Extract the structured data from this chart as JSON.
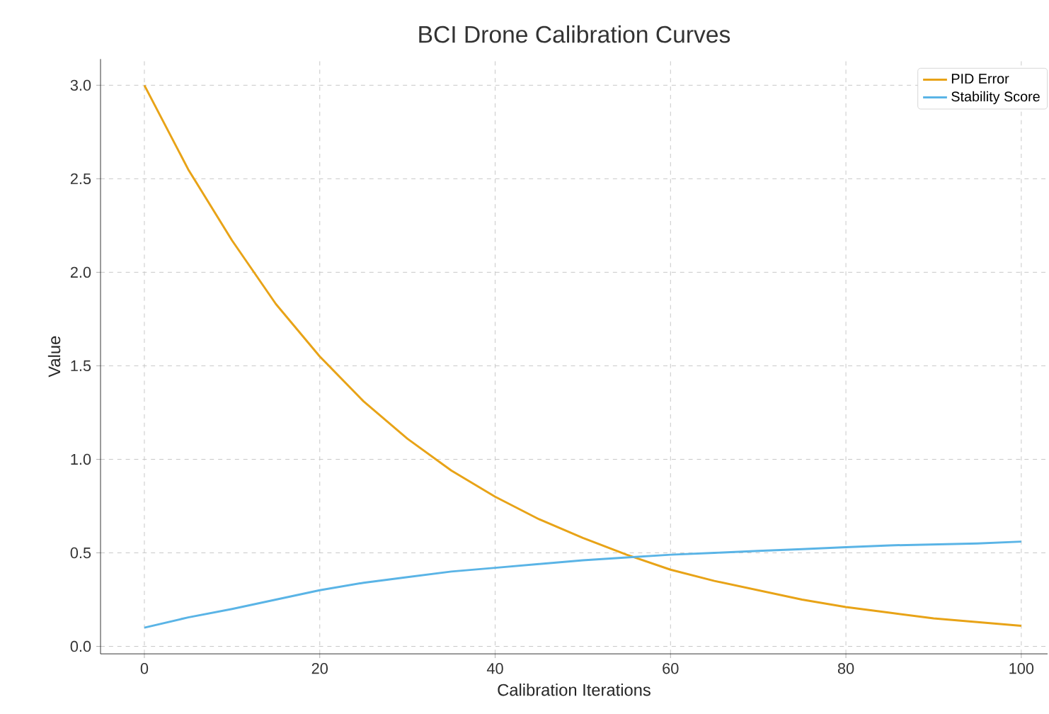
{
  "chart_data": {
    "type": "line",
    "title": "BCI Drone Calibration Curves",
    "xlabel": "Calibration Iterations",
    "ylabel": "Value",
    "x": [
      0,
      5,
      10,
      15,
      20,
      25,
      30,
      35,
      40,
      45,
      50,
      55,
      60,
      65,
      70,
      75,
      80,
      85,
      90,
      95,
      100
    ],
    "series": [
      {
        "name": "PID Error",
        "color": "#e8a317",
        "values": [
          3.0,
          2.55,
          2.17,
          1.83,
          1.55,
          1.31,
          1.11,
          0.94,
          0.8,
          0.68,
          0.58,
          0.49,
          0.41,
          0.35,
          0.3,
          0.25,
          0.21,
          0.18,
          0.15,
          0.13,
          0.11
        ]
      },
      {
        "name": "Stability Score",
        "color": "#5ab4e6",
        "values": [
          0.1,
          0.155,
          0.2,
          0.25,
          0.3,
          0.34,
          0.37,
          0.4,
          0.42,
          0.44,
          0.46,
          0.475,
          0.49,
          0.5,
          0.51,
          0.52,
          0.53,
          0.54,
          0.545,
          0.55,
          0.56
        ]
      }
    ],
    "xlim": [
      -5,
      103
    ],
    "ylim": [
      -0.04,
      3.14
    ],
    "xticks": [
      0,
      20,
      40,
      60,
      80,
      100
    ],
    "yticks": [
      {
        "value": 0,
        "label": "0.0"
      },
      {
        "value": 0.5,
        "label": "0.5"
      },
      {
        "value": 1,
        "label": "1.0"
      },
      {
        "value": 1.5,
        "label": "1.5"
      },
      {
        "value": 2,
        "label": "2.0"
      },
      {
        "value": 2.5,
        "label": "2.5"
      },
      {
        "value": 3,
        "label": "3.0"
      }
    ],
    "grid": true,
    "legend": "top right",
    "line_style": "solid"
  }
}
